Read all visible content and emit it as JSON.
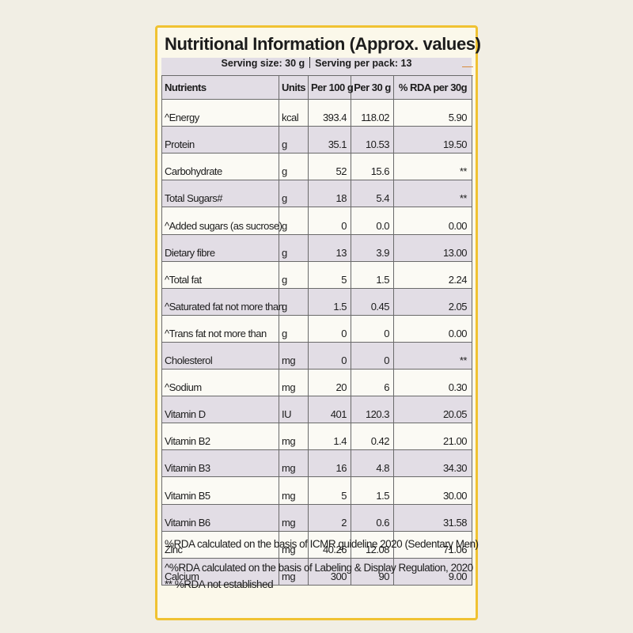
{
  "label": {
    "title": "Nutritional Information (Approx. values)",
    "serving_size": "Serving size: 30 g",
    "servings_per_pack": "Serving per pack: 13"
  },
  "table": {
    "headers": {
      "nutrients": "Nutrients",
      "units": "Units",
      "per100": "Per 100 g",
      "per30": "Per 30 g",
      "rda": "% RDA per 30g"
    },
    "rows": [
      {
        "name": "^Energy",
        "unit": "kcal",
        "per100": "393.4",
        "per30": "118.02",
        "rda": "5.90"
      },
      {
        "name": "Protein",
        "unit": "g",
        "per100": "35.1",
        "per30": "10.53",
        "rda": "19.50"
      },
      {
        "name": "Carbohydrate",
        "unit": "g",
        "per100": "52",
        "per30": "15.6",
        "rda": "**"
      },
      {
        "name": "Total Sugars#",
        "unit": "g",
        "per100": "18",
        "per30": "5.4",
        "rda": "**"
      },
      {
        "name": "^Added sugars (as sucrose)",
        "unit": "g",
        "per100": "0",
        "per30": "0.0",
        "rda": "0.00"
      },
      {
        "name": "Dietary fibre",
        "unit": "g",
        "per100": "13",
        "per30": "3.9",
        "rda": "13.00"
      },
      {
        "name": "^Total fat",
        "unit": "g",
        "per100": "5",
        "per30": "1.5",
        "rda": "2.24"
      },
      {
        "name": "^Saturated fat not more than",
        "unit": "g",
        "per100": "1.5",
        "per30": "0.45",
        "rda": "2.05"
      },
      {
        "name": "^Trans fat not more than",
        "unit": "g",
        "per100": "0",
        "per30": "0",
        "rda": "0.00"
      },
      {
        "name": "Cholesterol",
        "unit": "mg",
        "per100": "0",
        "per30": "0",
        "rda": "**"
      },
      {
        "name": "^Sodium",
        "unit": "mg",
        "per100": "20",
        "per30": "6",
        "rda": "0.30"
      },
      {
        "name": "Vitamin D",
        "unit": "IU",
        "per100": "401",
        "per30": "120.3",
        "rda": "20.05"
      },
      {
        "name": "Vitamin B2",
        "unit": "mg",
        "per100": "1.4",
        "per30": "0.42",
        "rda": "21.00"
      },
      {
        "name": "Vitamin B3",
        "unit": "mg",
        "per100": "16",
        "per30": "4.8",
        "rda": "34.30"
      },
      {
        "name": "Vitamin B5",
        "unit": "mg",
        "per100": "5",
        "per30": "1.5",
        "rda": "30.00"
      },
      {
        "name": "Vitamin B6",
        "unit": "mg",
        "per100": "2",
        "per30": "0.6",
        "rda": "31.58"
      },
      {
        "name": "Zinc",
        "unit": "mg",
        "per100": "40.26",
        "per30": "12.08",
        "rda": "71.06"
      },
      {
        "name": "Calcium",
        "unit": "mg",
        "per100": "300",
        "per30": "90",
        "rda": "9.00"
      }
    ]
  },
  "notes": {
    "icmr": "%RDA calculated on the basis of ICMR guideline 2020 (Sedentary Men)",
    "regulation": "^%RDA  calculated on the basis of Labeling & Display Regulation, 2020",
    "not_established": "** %RDA not established"
  },
  "colors": {
    "border": "#f0c232",
    "row_shade": "#e2dde5",
    "background": "#f1eee4"
  }
}
